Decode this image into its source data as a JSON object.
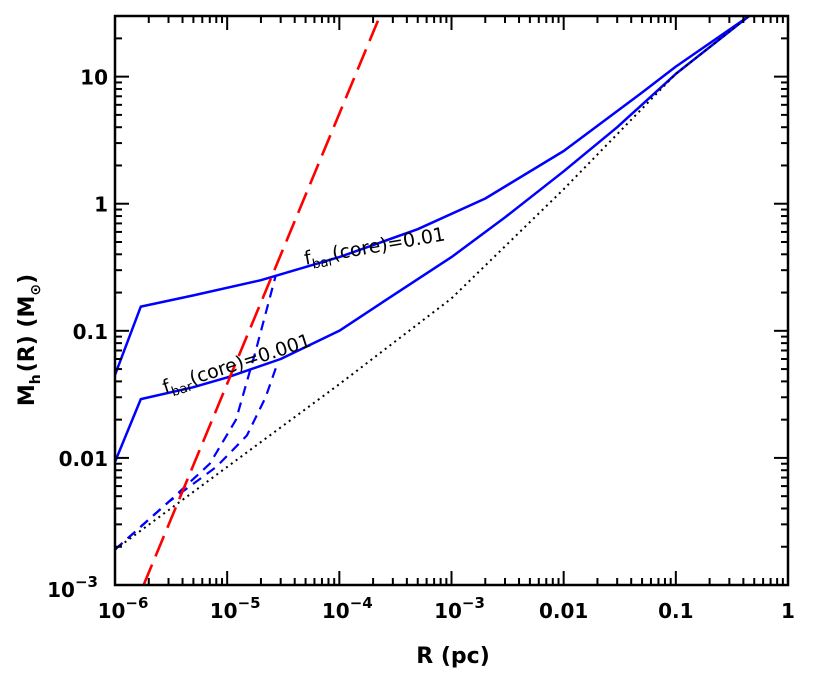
{
  "chart_data": {
    "type": "line",
    "xscale": "log",
    "yscale": "log",
    "xlim": [
      1e-06,
      1
    ],
    "ylim": [
      0.001,
      30
    ],
    "grid": false,
    "xlabel": "R (pc)",
    "ylabel": {
      "main": "M",
      "sub": "h",
      "rest": "(R) (M",
      "suffix": ")"
    },
    "x_ticks": [
      {
        "value": 1e-06,
        "base": "10",
        "exp": "−6"
      },
      {
        "value": 1e-05,
        "base": "10",
        "exp": "−5"
      },
      {
        "value": 0.0001,
        "base": "10",
        "exp": "−4"
      },
      {
        "value": 0.001,
        "base": "10",
        "exp": "−3"
      },
      {
        "value": 0.01,
        "base": "0.01",
        "exp": ""
      },
      {
        "value": 0.1,
        "base": "0.1",
        "exp": ""
      },
      {
        "value": 1,
        "base": "1",
        "exp": ""
      }
    ],
    "y_ticks": [
      {
        "value": 0.001,
        "base": "10",
        "exp": "−3"
      },
      {
        "value": 0.01,
        "base": "0.01",
        "exp": ""
      },
      {
        "value": 0.1,
        "base": "0.1",
        "exp": ""
      },
      {
        "value": 1,
        "base": "1",
        "exp": ""
      },
      {
        "value": 10,
        "base": "10",
        "exp": ""
      }
    ],
    "series": [
      {
        "style": "solid",
        "color": "#0000ff",
        "width": 2.5,
        "points": [
          [
            1e-06,
            0.045
          ],
          [
            1.7e-06,
            0.155
          ],
          [
            5e-06,
            0.19
          ],
          [
            2e-05,
            0.25
          ],
          [
            0.0001,
            0.38
          ],
          [
            0.0005,
            0.63
          ],
          [
            0.002,
            1.1
          ],
          [
            0.01,
            2.6
          ],
          [
            0.05,
            7.5
          ],
          [
            0.1,
            12
          ],
          [
            0.45,
            30
          ]
        ]
      },
      {
        "style": "solid",
        "color": "#0000ff",
        "width": 2.5,
        "points": [
          [
            1e-06,
            0.0093
          ],
          [
            1.7e-06,
            0.029
          ],
          [
            5e-06,
            0.036
          ],
          [
            1e-05,
            0.043
          ],
          [
            3e-05,
            0.06
          ],
          [
            0.0001,
            0.1
          ],
          [
            0.0003,
            0.19
          ],
          [
            0.001,
            0.38
          ],
          [
            0.003,
            0.78
          ],
          [
            0.01,
            1.8
          ],
          [
            0.03,
            4.0
          ],
          [
            0.1,
            10.5
          ],
          [
            0.45,
            30
          ]
        ]
      },
      {
        "style": "dashed",
        "color": "#0000ff",
        "width": 2.2,
        "points": [
          [
            1e-06,
            0.0019
          ],
          [
            3e-06,
            0.0045
          ],
          [
            7e-06,
            0.009
          ],
          [
            1.2e-05,
            0.02
          ],
          [
            1.8e-05,
            0.07
          ],
          [
            2.7e-05,
            0.27
          ]
        ]
      },
      {
        "style": "dashed",
        "color": "#0000ff",
        "width": 2.2,
        "points": [
          [
            1e-06,
            0.0019
          ],
          [
            3e-06,
            0.0045
          ],
          [
            8e-06,
            0.0085
          ],
          [
            1.5e-05,
            0.015
          ],
          [
            2.2e-05,
            0.03
          ],
          [
            2.8e-05,
            0.055
          ]
        ]
      },
      {
        "style": "dotted",
        "color": "#000000",
        "width": 2,
        "points": [
          [
            1e-06,
            0.0019
          ],
          [
            1e-05,
            0.0085
          ],
          [
            0.0001,
            0.038
          ],
          [
            0.001,
            0.18
          ],
          [
            0.01,
            1.3
          ],
          [
            0.1,
            10.5
          ],
          [
            0.45,
            30
          ]
        ]
      },
      {
        "style": "longdash",
        "color": "#ff0000",
        "width": 2.6,
        "points": [
          [
            1.8e-06,
            0.001
          ],
          [
            0.00023,
            30
          ]
        ]
      }
    ],
    "annotations": [
      {
        "main": "f",
        "sub": "bar",
        "rest": "(core)=0.01",
        "x": 5e-05,
        "y": 0.33,
        "angle": -10
      },
      {
        "main": "f",
        "sub": "bar",
        "rest": "(core)=0.001",
        "x": 2.8e-06,
        "y": 0.032,
        "angle": -18
      }
    ]
  }
}
